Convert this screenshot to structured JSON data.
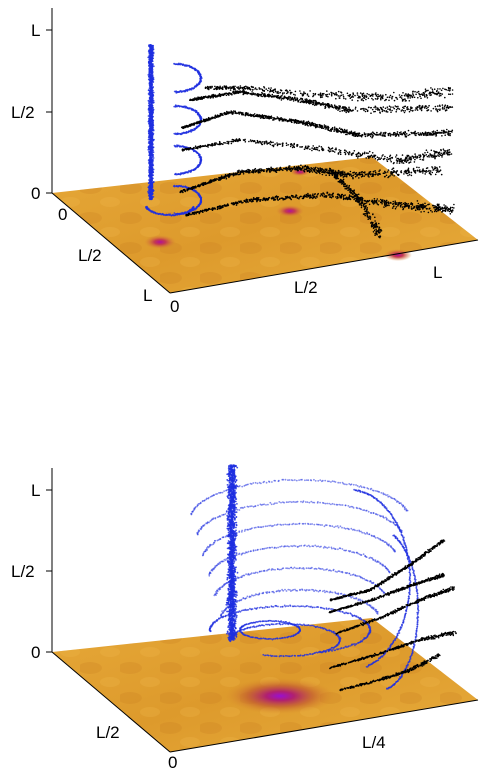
{
  "top_panel": {
    "z_axis": {
      "ticks": [
        "0",
        "L/2",
        "L"
      ]
    },
    "y_axis": {
      "ticks": [
        "0",
        "L/2",
        "L"
      ]
    },
    "x_axis": {
      "ticks": [
        "0",
        "L/2",
        "L"
      ]
    }
  },
  "bottom_panel": {
    "z_axis": {
      "ticks": [
        "0",
        "L/2",
        "L"
      ]
    },
    "y_axis": {
      "ticks": [
        "L/2",
        "0"
      ]
    },
    "x_axis": {
      "ticks": [
        "L/4"
      ]
    }
  },
  "colors": {
    "floor_base": "#e3a02a",
    "floor_dark": "#c8761a",
    "vortex_core": "#a010a0",
    "trajectory_blue": "#1f2fe0",
    "trajectory_black": "#000000"
  }
}
